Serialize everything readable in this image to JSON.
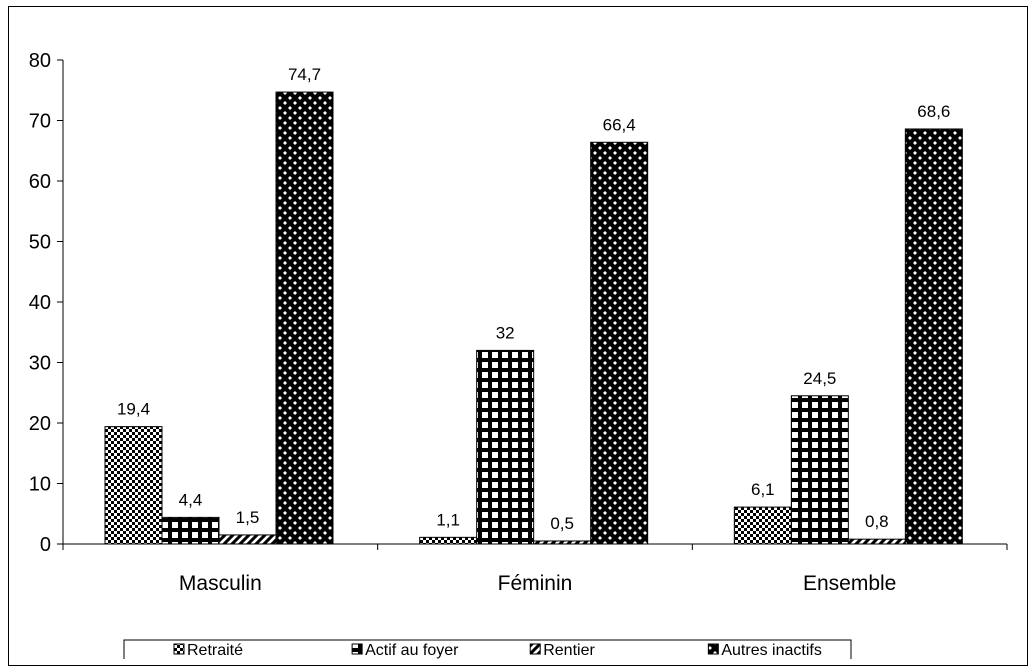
{
  "chart_data": {
    "type": "bar",
    "title": "",
    "xlabel": "",
    "ylabel": "",
    "ylim": [
      0,
      80
    ],
    "yticks": [
      0,
      10,
      20,
      30,
      40,
      50,
      60,
      70,
      80
    ],
    "categories": [
      "Masculin",
      "Féminin",
      "Ensemble"
    ],
    "series": [
      {
        "name": "Retraité",
        "values": [
          19.4,
          1.1,
          6.1
        ],
        "labels": [
          "19,4",
          "1,1",
          "6,1"
        ],
        "pattern": "checker"
      },
      {
        "name": "Actif au foyer",
        "values": [
          4.4,
          32,
          24.5
        ],
        "labels": [
          "4,4",
          "32",
          "24,5"
        ],
        "pattern": "grid"
      },
      {
        "name": "Rentier",
        "values": [
          1.5,
          0.5,
          0.8
        ],
        "labels": [
          "1,5",
          "0,5",
          "0,8"
        ],
        "pattern": "diagonal"
      },
      {
        "name": "Autres inactifs",
        "values": [
          74.7,
          66.4,
          68.6
        ],
        "labels": [
          "74,7",
          "66,4",
          "68,6"
        ],
        "pattern": "diamond"
      }
    ],
    "grid": false,
    "legend": "bottom",
    "colors": {
      "fill": "#000000",
      "background": "#ffffff"
    }
  }
}
